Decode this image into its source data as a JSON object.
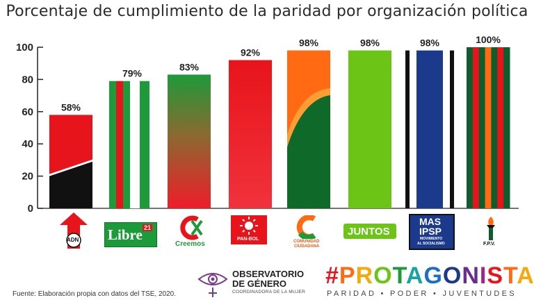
{
  "chart_data": {
    "type": "bar",
    "title": "Porcentaje de cumplimiento de la paridad por organización política",
    "categories": [
      "ADN",
      "Libre 21",
      "Creemos",
      "PAN-BOL",
      "Comunidad Ciudadana",
      "JUNTOS",
      "MAS IPSP",
      "F.P.V."
    ],
    "values": [
      58,
      79,
      83,
      92,
      98,
      98,
      98,
      100
    ],
    "value_labels": [
      "58%",
      "79%",
      "83%",
      "92%",
      "98%",
      "98%",
      "98%",
      "100%"
    ],
    "ylim": [
      0,
      100
    ],
    "yticks": [
      0,
      20,
      40,
      60,
      80,
      100
    ],
    "grid": false,
    "bar_colors": [
      "#e8141b",
      "#1d9a3a",
      "#2d9b3a",
      "#e8141b",
      "#ff6a13",
      "#6cc417",
      "#1b3a8c",
      "#0d5e2c"
    ]
  },
  "logos": {
    "adn": "ADN",
    "libre_word": "Libre",
    "libre_num": "21",
    "creemos": "Creemos",
    "panbol": "PAN-BOL",
    "cc_line1": "COMUNIDAD",
    "cc_line2": "CIUDADANA",
    "juntos": "JUNTOS",
    "mas_line1": "MAS",
    "mas_line2": "IPSP",
    "mas_line3": "MOVIMIENTO",
    "mas_line4": "AL SOCIALISMO",
    "fpv": "F.P.V."
  },
  "footer": {
    "source": "Fuente: Elaboración propia con datos del TSE, 2020.",
    "observatorio_line1": "OBSERVATORIO",
    "observatorio_line2": "DE GÉNERO",
    "observatorio_tagline": "COORDINADORA DE LA MUJER",
    "protagonistas": "#PROTAGONISTAS",
    "protagonistas_tagline": "PARIDAD • PODER • JUVENTUDES"
  }
}
